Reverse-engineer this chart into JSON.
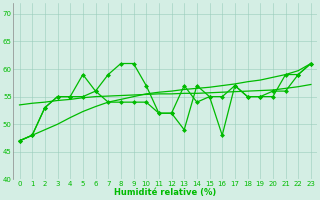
{
  "x": [
    0,
    1,
    2,
    3,
    4,
    5,
    6,
    7,
    8,
    9,
    10,
    11,
    12,
    13,
    14,
    15,
    16,
    17,
    18,
    19,
    20,
    21,
    22,
    23
  ],
  "line_zigzag": [
    47,
    48,
    53,
    55,
    55,
    59,
    56,
    59,
    61,
    61,
    57,
    52,
    52,
    49,
    57,
    55,
    48,
    57,
    55,
    55,
    55,
    59,
    59,
    61
  ],
  "line_flat": [
    47,
    48,
    53,
    55,
    55,
    55,
    56,
    54,
    54,
    54,
    54,
    52,
    52,
    57,
    54,
    55,
    55,
    57,
    55,
    55,
    56,
    56,
    59,
    61
  ],
  "trend1": [
    47.0,
    48.0,
    49.0,
    50.0,
    51.2,
    52.3,
    53.2,
    54.0,
    54.5,
    55.0,
    55.5,
    55.8,
    56.0,
    56.3,
    56.5,
    56.7,
    57.0,
    57.3,
    57.7,
    58.0,
    58.5,
    59.0,
    59.7,
    61.0
  ],
  "trend2": [
    53.5,
    53.8,
    54.0,
    54.3,
    54.5,
    54.8,
    55.0,
    55.1,
    55.2,
    55.3,
    55.4,
    55.5,
    55.5,
    55.6,
    55.6,
    55.7,
    55.8,
    55.9,
    56.0,
    56.1,
    56.2,
    56.5,
    56.8,
    57.2
  ],
  "xlabel": "Humidité relative (%)",
  "ylim": [
    40,
    72
  ],
  "xlim": [
    -0.5,
    23.5
  ],
  "yticks": [
    40,
    45,
    50,
    55,
    60,
    65,
    70
  ],
  "xticks": [
    0,
    1,
    2,
    3,
    4,
    5,
    6,
    7,
    8,
    9,
    10,
    11,
    12,
    13,
    14,
    15,
    16,
    17,
    18,
    19,
    20,
    21,
    22,
    23
  ],
  "line_color": "#00bb00",
  "bg_color": "#d4eee4",
  "grid_color": "#99ccbb",
  "markersize": 2.5,
  "linewidth": 0.9,
  "xlabel_fontsize": 6.0,
  "tick_fontsize": 5.0
}
